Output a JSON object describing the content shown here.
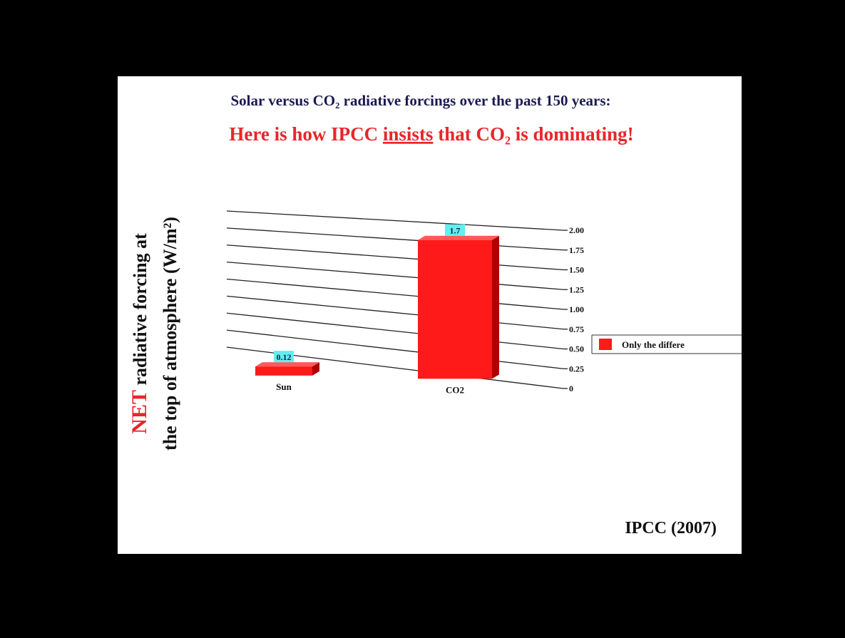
{
  "chart_data": {
    "type": "bar",
    "title": "Solar versus CO₂ radiative forcings over the past 150 years:",
    "subtitle_parts": [
      "Here is how IPCC ",
      "insists",
      " that CO₂ is dominating!"
    ],
    "y_label_parts": [
      "NET",
      " radiative forcing at",
      "the top of atmosphere (W/m²)"
    ],
    "categories": [
      "Sun",
      "CO2"
    ],
    "series": [
      {
        "name": "Only the differe",
        "color": "#ff1a1a",
        "values": [
          0.12,
          1.7
        ],
        "value_labels": [
          "0.12",
          "1.7"
        ]
      }
    ],
    "ylim": [
      0,
      2
    ],
    "yticks": [
      0,
      0.25,
      {
        "value": 0.5,
        "label": "0.50"
      },
      0.75,
      {
        "value": 1,
        "label": "1.00"
      },
      1.25,
      {
        "value": 1.5,
        "label": "1.50"
      },
      1.75,
      {
        "value": 2,
        "label": "2.00"
      }
    ],
    "grid": true,
    "source": "IPCC (2007)"
  }
}
